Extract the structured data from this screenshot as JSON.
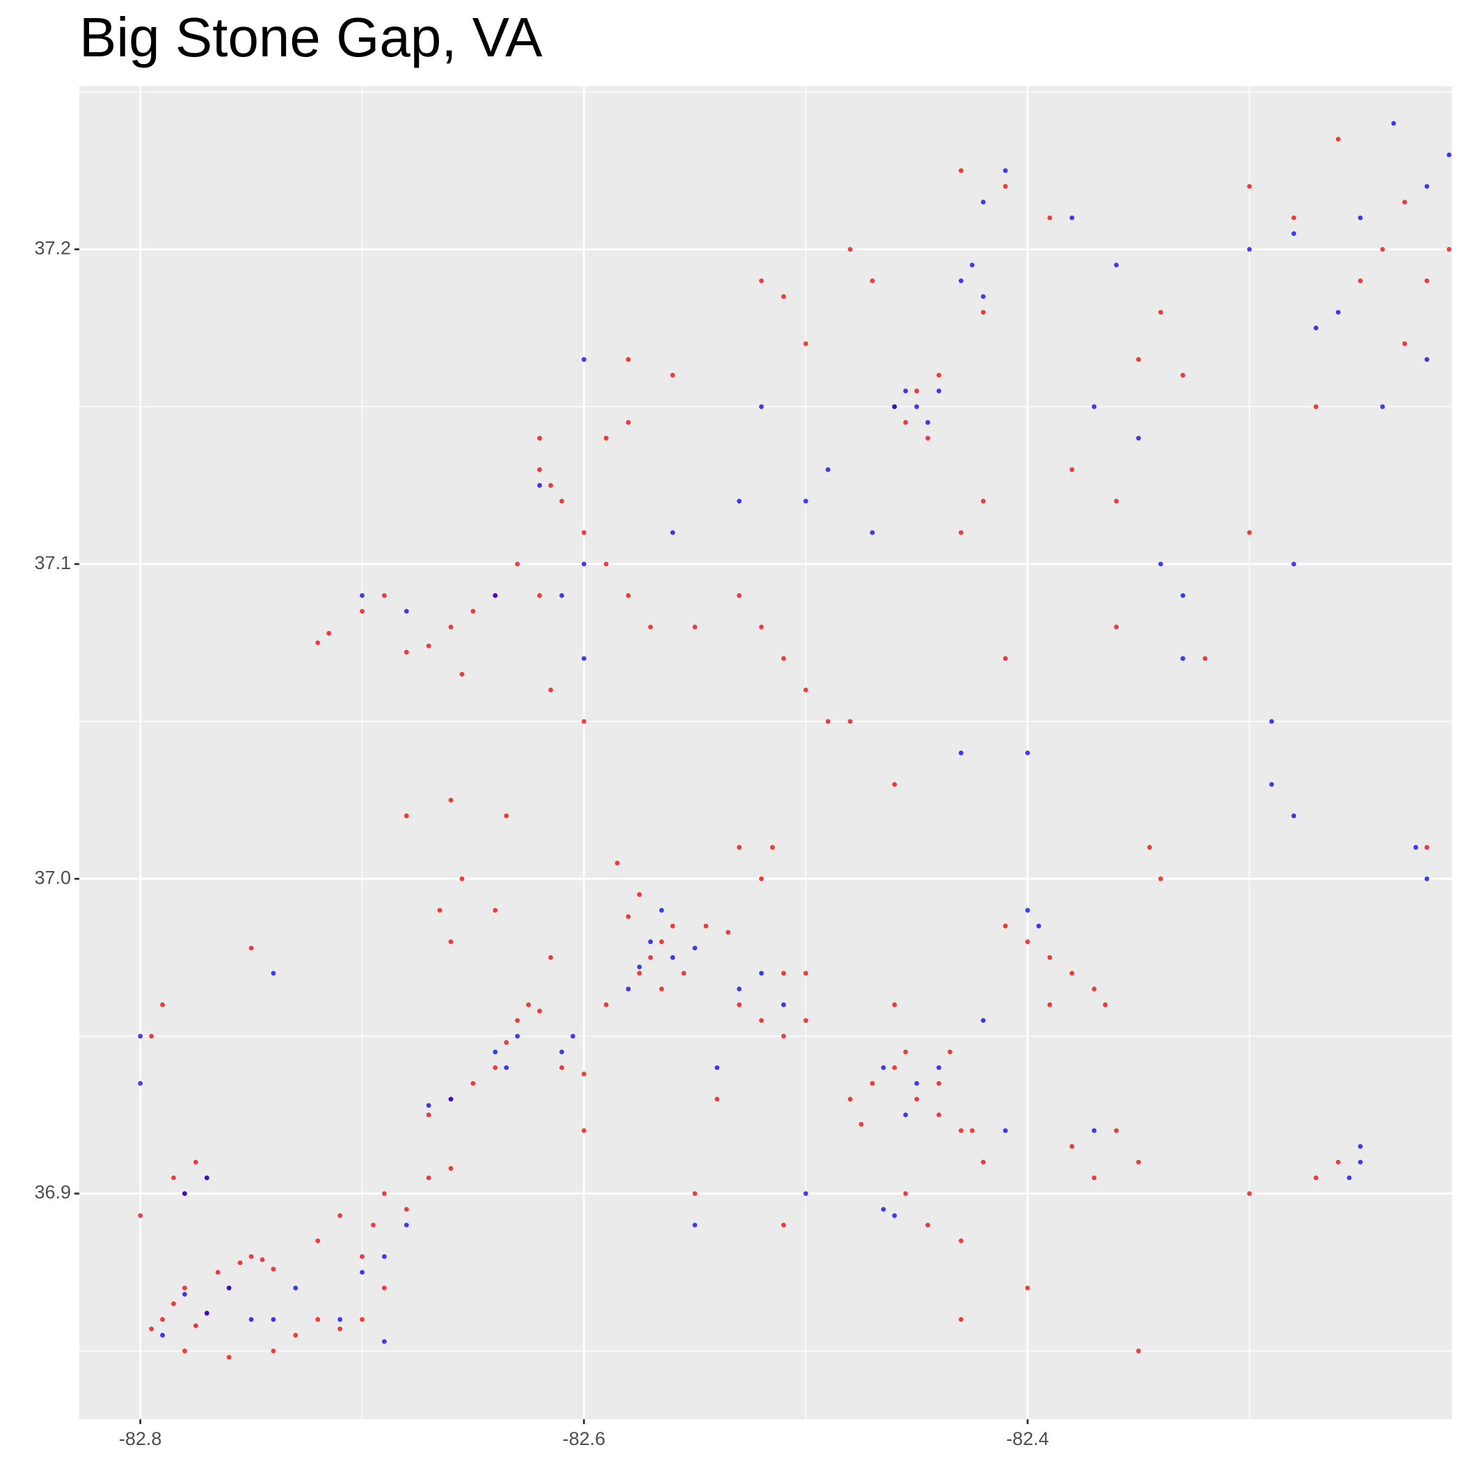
{
  "chart_data": {
    "type": "scatter",
    "title": "Big Stone Gap, VA",
    "xlim": [
      -82.8275,
      -82.2087
    ],
    "ylim": [
      36.8283,
      37.2518
    ],
    "xticks": [
      -82.8,
      -82.6,
      -82.4
    ],
    "yticks": [
      36.9,
      {
        "value": 37,
        "label": "37.0"
      },
      37.1,
      37.2
    ],
    "x_minor_grid": [
      -82.7,
      -82.5,
      -82.3
    ],
    "y_minor_grid": [
      36.85,
      36.95,
      37.05,
      37.15,
      37.25
    ],
    "grid": true,
    "series": [
      {
        "color": "#ee0000",
        "x": [
          -82.79,
          -82.785,
          -82.78,
          -82.775,
          -82.77,
          -82.765,
          -82.76,
          -82.755,
          -82.75,
          -82.745,
          -82.74,
          -82.795,
          -82.78,
          -82.76,
          -82.74,
          -82.73,
          -82.72,
          -82.71,
          -82.7,
          -82.69,
          -82.7,
          -82.695,
          -82.68,
          -82.67,
          -82.66,
          -82.69,
          -82.72,
          -82.71,
          -82.795,
          -82.79,
          -82.785,
          -82.78,
          -82.775,
          -82.77,
          -82.8,
          -82.75,
          -82.67,
          -82.66,
          -82.65,
          -82.64,
          -82.635,
          -82.63,
          -82.625,
          -82.62,
          -82.61,
          -82.6,
          -82.615,
          -82.66,
          -82.665,
          -82.64,
          -82.655,
          -82.635,
          -82.66,
          -82.68,
          -82.575,
          -82.57,
          -82.565,
          -82.56,
          -82.58,
          -82.575,
          -82.565,
          -82.555,
          -82.545,
          -82.535,
          -82.53,
          -82.52,
          -82.51,
          -82.5,
          -82.51,
          -82.52,
          -82.515,
          -82.53,
          -82.585,
          -82.59,
          -82.47,
          -82.46,
          -82.455,
          -82.45,
          -82.44,
          -82.435,
          -82.48,
          -82.475,
          -82.44,
          -82.43,
          -82.425,
          -82.42,
          -82.455,
          -82.445,
          -82.43,
          -82.46,
          -82.41,
          -82.4,
          -82.39,
          -82.38,
          -82.37,
          -82.39,
          -82.365,
          -82.38,
          -82.37,
          -82.36,
          -82.35,
          -82.34,
          -82.345,
          -82.27,
          -82.26,
          -82.22,
          -82.62,
          -82.615,
          -82.61,
          -82.62,
          -82.6,
          -82.59,
          -82.58,
          -82.57,
          -82.63,
          -82.615,
          -82.6,
          -82.59,
          -82.58,
          -82.58,
          -82.56,
          -82.55,
          -82.53,
          -82.52,
          -82.51,
          -82.5,
          -82.49,
          -82.72,
          -82.715,
          -82.7,
          -82.69,
          -82.68,
          -82.67,
          -82.66,
          -82.65,
          -82.64,
          -82.62,
          -82.655,
          -82.46,
          -82.455,
          -82.45,
          -82.445,
          -82.44,
          -82.47,
          -82.48,
          -82.52,
          -82.51,
          -82.5,
          -82.42,
          -82.41,
          -82.43,
          -82.39,
          -82.34,
          -82.35,
          -82.33,
          -82.38,
          -82.36,
          -82.3,
          -82.27,
          -82.25,
          -82.24,
          -82.22,
          -82.21,
          -82.23,
          -82.26,
          -82.3,
          -82.28,
          -82.23,
          -82.42,
          -82.43,
          -82.41,
          -82.36,
          -82.32,
          -82.48,
          -82.46,
          -82.4,
          -82.35,
          -82.43,
          -82.3,
          -82.5,
          -82.55,
          -82.51,
          -82.6,
          -82.54
        ],
        "values": [
          36.86,
          36.865,
          36.87,
          36.858,
          36.862,
          36.875,
          36.87,
          36.878,
          36.88,
          36.879,
          36.876,
          36.857,
          36.85,
          36.848,
          36.85,
          36.855,
          36.86,
          36.857,
          36.86,
          36.87,
          36.88,
          36.89,
          36.895,
          36.905,
          36.908,
          36.9,
          36.885,
          36.893,
          36.95,
          36.96,
          36.905,
          36.9,
          36.91,
          36.905,
          36.893,
          36.978,
          36.925,
          36.93,
          36.935,
          36.94,
          36.948,
          36.955,
          36.96,
          36.958,
          36.94,
          36.938,
          36.975,
          36.98,
          36.99,
          36.99,
          37.0,
          37.02,
          37.025,
          37.02,
          36.97,
          36.975,
          36.98,
          36.985,
          36.988,
          36.995,
          36.965,
          36.97,
          36.985,
          36.983,
          36.96,
          36.955,
          36.95,
          36.955,
          36.97,
          37.0,
          37.01,
          37.01,
          37.005,
          36.96,
          36.935,
          36.94,
          36.945,
          36.93,
          36.935,
          36.945,
          36.93,
          36.922,
          36.925,
          36.92,
          36.92,
          36.91,
          36.9,
          36.89,
          36.885,
          36.96,
          36.985,
          36.98,
          36.975,
          36.97,
          36.965,
          36.96,
          36.96,
          36.915,
          36.905,
          36.92,
          36.91,
          37.0,
          37.01,
          36.905,
          36.91,
          37.01,
          37.13,
          37.125,
          37.12,
          37.14,
          37.11,
          37.1,
          37.09,
          37.08,
          37.1,
          37.06,
          37.05,
          37.14,
          37.145,
          37.165,
          37.16,
          37.08,
          37.09,
          37.08,
          37.07,
          37.06,
          37.05,
          37.075,
          37.078,
          37.085,
          37.09,
          37.072,
          37.074,
          37.08,
          37.085,
          37.09,
          37.09,
          37.065,
          37.15,
          37.145,
          37.155,
          37.14,
          37.16,
          37.19,
          37.2,
          37.19,
          37.185,
          37.17,
          37.18,
          37.22,
          37.225,
          37.21,
          37.18,
          37.165,
          37.16,
          37.13,
          37.12,
          37.11,
          37.15,
          37.19,
          37.2,
          37.19,
          37.2,
          37.17,
          37.235,
          37.22,
          37.21,
          37.215,
          37.12,
          37.11,
          37.07,
          37.08,
          37.07,
          37.05,
          37.03,
          36.87,
          36.85,
          36.86,
          36.9,
          36.97,
          36.9,
          36.89,
          36.92,
          36.93
        ]
      },
      {
        "color": "#0000ee",
        "x": [
          -82.79,
          -82.78,
          -82.77,
          -82.76,
          -82.75,
          -82.74,
          -82.73,
          -82.78,
          -82.77,
          -82.8,
          -82.8,
          -82.7,
          -82.69,
          -82.71,
          -82.69,
          -82.64,
          -82.635,
          -82.63,
          -82.61,
          -82.605,
          -82.66,
          -82.67,
          -82.68,
          -82.575,
          -82.57,
          -82.565,
          -82.56,
          -82.58,
          -82.55,
          -82.53,
          -82.52,
          -82.51,
          -82.54,
          -82.465,
          -82.45,
          -82.44,
          -82.455,
          -82.465,
          -82.46,
          -82.42,
          -82.41,
          -82.4,
          -82.395,
          -82.25,
          -82.255,
          -82.25,
          -82.22,
          -82.225,
          -82.28,
          -82.29,
          -82.6,
          -82.61,
          -82.6,
          -82.62,
          -82.6,
          -82.56,
          -82.5,
          -82.49,
          -82.47,
          -82.53,
          -82.52,
          -82.46,
          -82.455,
          -82.45,
          -82.445,
          -82.44,
          -82.43,
          -82.425,
          -82.42,
          -82.42,
          -82.41,
          -82.38,
          -82.36,
          -82.37,
          -82.35,
          -82.34,
          -82.33,
          -82.33,
          -82.3,
          -82.27,
          -82.26,
          -82.28,
          -82.25,
          -82.22,
          -82.22,
          -82.21,
          -82.235,
          -82.24,
          -82.28,
          -82.29,
          -82.4,
          -82.37,
          -82.43,
          -82.5,
          -82.55,
          -82.68,
          -82.7,
          -82.64,
          -82.74
        ],
        "values": [
          36.855,
          36.868,
          36.862,
          36.87,
          36.86,
          36.86,
          36.87,
          36.9,
          36.905,
          36.935,
          36.95,
          36.875,
          36.88,
          36.86,
          36.853,
          36.945,
          36.94,
          36.95,
          36.945,
          36.95,
          36.93,
          36.928,
          36.89,
          36.972,
          36.98,
          36.99,
          36.975,
          36.965,
          36.978,
          36.965,
          36.97,
          36.96,
          36.94,
          36.94,
          36.935,
          36.94,
          36.925,
          36.895,
          36.893,
          36.955,
          36.92,
          36.99,
          36.985,
          36.91,
          36.905,
          36.915,
          37.0,
          37.01,
          37.02,
          37.03,
          37.07,
          37.09,
          37.1,
          37.125,
          37.165,
          37.11,
          37.12,
          37.13,
          37.11,
          37.12,
          37.15,
          37.15,
          37.155,
          37.15,
          37.145,
          37.155,
          37.19,
          37.195,
          37.185,
          37.215,
          37.225,
          37.21,
          37.195,
          37.15,
          37.14,
          37.1,
          37.09,
          37.07,
          37.2,
          37.175,
          37.18,
          37.205,
          37.21,
          37.22,
          37.165,
          37.23,
          37.24,
          37.15,
          37.1,
          37.05,
          37.04,
          36.92,
          37.04,
          36.9,
          36.89,
          37.085,
          37.09,
          37.09,
          36.97
        ]
      }
    ]
  }
}
